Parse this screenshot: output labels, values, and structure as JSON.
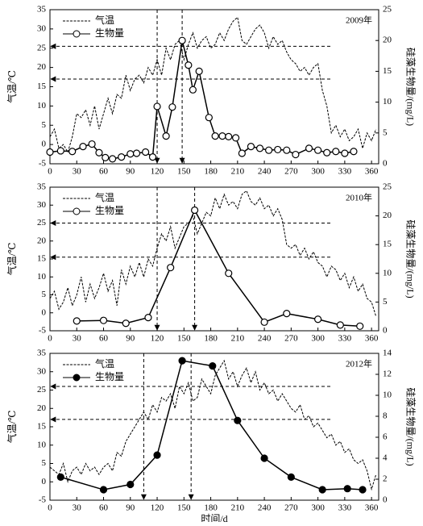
{
  "chart_data": [
    {
      "type": "line",
      "annotation": "2009年",
      "y_label": "气温/℃",
      "y2_label": "硅藻生物量/(mg/L)",
      "xlim": [
        0,
        368
      ],
      "xticks": [
        0,
        30,
        60,
        90,
        120,
        150,
        180,
        210,
        240,
        270,
        300,
        330,
        360
      ],
      "ylim": [
        -5,
        35
      ],
      "yticks": [
        -5,
        0,
        5,
        10,
        15,
        20,
        25,
        30,
        35
      ],
      "y2lim": [
        0,
        25
      ],
      "y2ticks": [
        0,
        5,
        10,
        15,
        20,
        25
      ],
      "hlines": [
        25.5,
        17
      ],
      "vlines": [
        120,
        148
      ],
      "series": [
        {
          "name": "气温",
          "color": "#000000",
          "x": [
            0,
            5,
            10,
            15,
            20,
            25,
            30,
            35,
            40,
            45,
            50,
            55,
            60,
            65,
            70,
            75,
            80,
            85,
            90,
            95,
            100,
            105,
            110,
            115,
            120,
            125,
            130,
            135,
            140,
            145,
            150,
            155,
            160,
            165,
            170,
            175,
            180,
            185,
            190,
            195,
            200,
            205,
            210,
            215,
            220,
            225,
            230,
            235,
            240,
            245,
            250,
            255,
            260,
            265,
            270,
            275,
            280,
            285,
            290,
            295,
            300,
            305,
            310,
            315,
            320,
            325,
            330,
            335,
            340,
            345,
            350,
            355,
            360,
            365
          ],
          "values": [
            2,
            4,
            -1,
            0,
            -2,
            2,
            8,
            7,
            9,
            5,
            10,
            4,
            8,
            12,
            8,
            13,
            12,
            18,
            14,
            17,
            18,
            16,
            20,
            18,
            22,
            18,
            25,
            22,
            26,
            27,
            22,
            26,
            29,
            25,
            27,
            28,
            25,
            26,
            29,
            27,
            30,
            32,
            33,
            27,
            26,
            28,
            30,
            31,
            29,
            25,
            28,
            26,
            27,
            24,
            22,
            21,
            19,
            20,
            18,
            20,
            21,
            14,
            10,
            3,
            5,
            2,
            4,
            1,
            2,
            4,
            -1,
            3,
            1,
            4
          ]
        },
        {
          "name": "生物量",
          "color": "#000000",
          "axis": "y2",
          "marker_fill": "#ffffff",
          "x": [
            0,
            12,
            25,
            37,
            47,
            55,
            62,
            70,
            80,
            90,
            97,
            107,
            115,
            120,
            130,
            137,
            148,
            155,
            160,
            167,
            178,
            185,
            193,
            200,
            208,
            215,
            225,
            235,
            245,
            255,
            265,
            275,
            290,
            300,
            310,
            320,
            330,
            340
          ],
          "values": [
            1.9,
            2.1,
            2.0,
            2.8,
            3.2,
            1.8,
            1.0,
            0.8,
            1.1,
            1.6,
            1.7,
            1.9,
            1.1,
            9.3,
            4.5,
            9.2,
            20,
            16,
            12,
            15,
            7.5,
            4.5,
            4.5,
            4.4,
            4.2,
            1.7,
            2.8,
            2.5,
            2.2,
            2.3,
            2.2,
            1.5,
            2.5,
            2.2,
            1.8,
            2.0,
            1.7,
            2.0
          ]
        }
      ]
    },
    {
      "type": "line",
      "annotation": "2010年",
      "y_label": "气温/℃",
      "y2_label": "硅藻生物量/(mg/L)",
      "xlim": [
        0,
        368
      ],
      "xticks": [
        0,
        30,
        60,
        90,
        120,
        150,
        180,
        210,
        240,
        270,
        300,
        330,
        360
      ],
      "ylim": [
        -5,
        35
      ],
      "yticks": [
        -5,
        0,
        5,
        10,
        15,
        20,
        25,
        30,
        35
      ],
      "y2lim": [
        0,
        25
      ],
      "y2ticks": [
        0,
        5,
        10,
        15,
        20,
        25
      ],
      "hlines": [
        25,
        15.5
      ],
      "vlines": [
        120,
        162
      ],
      "series": [
        {
          "name": "气温",
          "color": "#000000",
          "x": [
            0,
            5,
            10,
            15,
            20,
            25,
            30,
            35,
            40,
            45,
            50,
            55,
            60,
            65,
            70,
            75,
            80,
            85,
            90,
            95,
            100,
            105,
            110,
            115,
            120,
            125,
            130,
            135,
            140,
            145,
            150,
            155,
            160,
            165,
            170,
            175,
            180,
            185,
            190,
            195,
            200,
            205,
            210,
            215,
            220,
            225,
            230,
            235,
            240,
            245,
            250,
            255,
            260,
            265,
            270,
            275,
            280,
            285,
            290,
            295,
            300,
            305,
            310,
            315,
            320,
            325,
            330,
            335,
            340,
            345,
            350,
            355,
            360,
            365
          ],
          "values": [
            4,
            6,
            1,
            3,
            7,
            2,
            5,
            10,
            3,
            8,
            4,
            7,
            11,
            6,
            9,
            2,
            12,
            8,
            13,
            10,
            14,
            10,
            15,
            13,
            18,
            22,
            20,
            24,
            18,
            21,
            24,
            25,
            27,
            22,
            25,
            28,
            27,
            32,
            29,
            33,
            30,
            31,
            29,
            33,
            34,
            31,
            30,
            32,
            29,
            30,
            27,
            29,
            26,
            19,
            18,
            19,
            16,
            18,
            15,
            17,
            14,
            13,
            10,
            13,
            12,
            9,
            11,
            7,
            10,
            6,
            8,
            4,
            3,
            -1
          ]
        },
        {
          "name": "生物量",
          "color": "#000000",
          "axis": "y2",
          "marker_fill": "#ffffff",
          "x": [
            30,
            60,
            85,
            110,
            135,
            162,
            200,
            240,
            265,
            300,
            325,
            347
          ],
          "values": [
            1.7,
            1.8,
            1.3,
            2.3,
            11,
            21,
            10,
            1.5,
            3,
            2,
            1,
            0.8
          ]
        }
      ]
    },
    {
      "type": "line",
      "annotation": "2012年",
      "y_label": "气温/℃",
      "y2_label": "硅藻生物量/(mg/L)",
      "x_label": "时间/d",
      "xlim": [
        0,
        368
      ],
      "xticks": [
        0,
        30,
        60,
        90,
        120,
        150,
        180,
        210,
        240,
        270,
        300,
        330,
        360
      ],
      "ylim": [
        -5,
        35
      ],
      "yticks": [
        -5,
        0,
        5,
        10,
        15,
        20,
        25,
        30,
        35
      ],
      "y2lim": [
        0,
        14
      ],
      "y2ticks": [
        0,
        2,
        4,
        6,
        8,
        10,
        12,
        14
      ],
      "hlines": [
        26,
        17
      ],
      "vlines": [
        105,
        158
      ],
      "series": [
        {
          "name": "气温",
          "color": "#000000",
          "x": [
            0,
            5,
            10,
            15,
            20,
            25,
            30,
            35,
            40,
            45,
            50,
            55,
            60,
            65,
            70,
            75,
            80,
            85,
            90,
            95,
            100,
            105,
            110,
            115,
            120,
            125,
            130,
            135,
            140,
            145,
            150,
            155,
            160,
            165,
            170,
            175,
            180,
            185,
            190,
            195,
            200,
            205,
            210,
            215,
            220,
            225,
            230,
            235,
            240,
            245,
            250,
            255,
            260,
            265,
            270,
            275,
            280,
            285,
            290,
            295,
            300,
            305,
            310,
            315,
            320,
            325,
            330,
            335,
            340,
            345,
            350,
            355,
            360,
            365
          ],
          "values": [
            4,
            3,
            2,
            5,
            0,
            3,
            4,
            2,
            5,
            3,
            4,
            2,
            4,
            5,
            3,
            8,
            7,
            11,
            13,
            15,
            17,
            19,
            17,
            21,
            19,
            23,
            22,
            24,
            20,
            26,
            24,
            27,
            22,
            23,
            28,
            26,
            24,
            29,
            31,
            33,
            28,
            30,
            26,
            29,
            31,
            27,
            30,
            25,
            27,
            24,
            25,
            22,
            24,
            22,
            20,
            19,
            21,
            17,
            18,
            15,
            16,
            14,
            12,
            13,
            10,
            11,
            8,
            9,
            6,
            5,
            6,
            3,
            -2,
            2
          ]
        },
        {
          "name": "生物量",
          "color": "#000000",
          "axis": "y2",
          "marker_fill": "#000000",
          "x": [
            12,
            60,
            90,
            120,
            148,
            182,
            210,
            240,
            270,
            305,
            333,
            350
          ],
          "values": [
            2.2,
            1.0,
            1.5,
            4.3,
            13.3,
            12.8,
            7.6,
            4,
            2.2,
            1.0,
            1.1,
            1.0
          ]
        }
      ]
    }
  ]
}
